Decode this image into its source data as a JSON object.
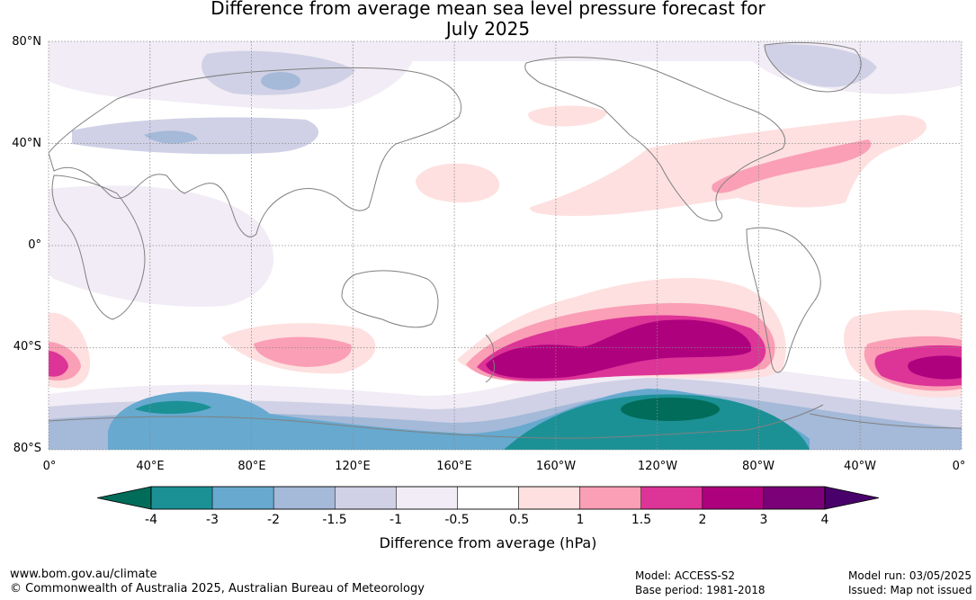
{
  "title": {
    "line1": "Difference from average mean sea level pressure forecast for",
    "line2": "July 2025"
  },
  "map": {
    "lat_labels": [
      "80°N",
      "40°N",
      "0°",
      "40°S",
      "80°S"
    ],
    "lon_labels": [
      "0°",
      "40°E",
      "80°E",
      "120°E",
      "160°E",
      "160°W",
      "120°W",
      "80°W",
      "40°W",
      "0°"
    ],
    "land_outline_color": "#808080",
    "grid_color": "#8c8c8c"
  },
  "legend": {
    "title": "Difference from average (hPa)",
    "ticks": [
      "-4",
      "-3",
      "-2",
      "-1.5",
      "-1",
      "-0.5",
      "0.5",
      "1",
      "1.5",
      "2",
      "3",
      "4"
    ],
    "colors": {
      "below_min": "#016c59",
      "bins": [
        "#1b9196",
        "#67a9cf",
        "#a5b9d9",
        "#d0d1e6",
        "#f1ecf5",
        "#ffffff",
        "#fde0df",
        "#fa9fb5",
        "#dd3497",
        "#ae017e",
        "#7a0177"
      ],
      "above_max": "#49006a"
    }
  },
  "footer": {
    "website": "www.bom.gov.au/climate",
    "copyright": "© Commonwealth of Australia 2025, Australian Bureau of Meteorology",
    "model": "Model: ACCESS-S2",
    "base_period": "Base period: 1981-2018",
    "model_run": "Model run: 03/05/2025",
    "issued": "Issued: Map not issued"
  }
}
